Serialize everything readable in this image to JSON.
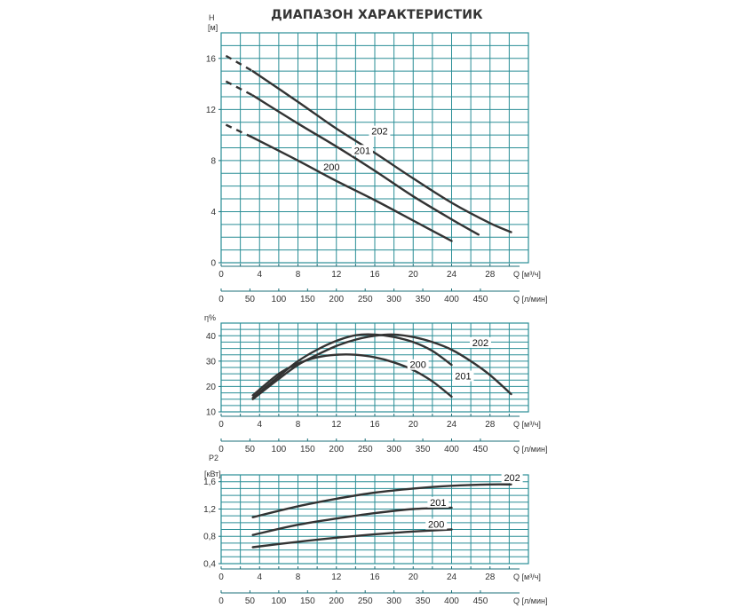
{
  "page": {
    "title": "ДИАПАЗОН ХАРАКТЕРИСТИК"
  },
  "colors": {
    "grid": "#2a8e96",
    "curve": "#333333",
    "axis": "#1b6f78"
  },
  "chart_data": [
    {
      "type": "line",
      "ylabel": "H",
      "yunit": "[м]",
      "ylim": [
        0,
        18
      ],
      "yticks": [
        0,
        4,
        8,
        12,
        16
      ],
      "xlim": [
        0,
        32
      ],
      "xticks": [
        0,
        4,
        8,
        12,
        16,
        20,
        24,
        28
      ],
      "xunit": "Q [м³/ч]",
      "x2ticks": [
        "0",
        "50",
        "100",
        "150",
        "200",
        "250",
        "300",
        "350",
        "400",
        "450"
      ],
      "x2unit": "Q [л/мин]",
      "grid": true,
      "series": [
        {
          "name": "202",
          "x": [
            0.5,
            3.3,
            8,
            12,
            16,
            20,
            24,
            28,
            30.2
          ],
          "y": [
            16.2,
            15.0,
            12.6,
            10.5,
            8.6,
            6.6,
            4.7,
            3.1,
            2.4
          ]
        },
        {
          "name": "201",
          "x": [
            0.5,
            3.3,
            8,
            12,
            16,
            20,
            24,
            26.8
          ],
          "y": [
            14.2,
            13.1,
            10.9,
            9.1,
            7.2,
            5.2,
            3.4,
            2.2
          ]
        },
        {
          "name": "200",
          "x": [
            0.5,
            3.3,
            8,
            12,
            16,
            20,
            24
          ],
          "y": [
            10.8,
            9.8,
            8.0,
            6.4,
            4.9,
            3.3,
            1.7
          ]
        }
      ]
    },
    {
      "type": "line",
      "ylabel": "η%",
      "ylim": [
        10,
        45
      ],
      "yticks": [
        10,
        20,
        30,
        40
      ],
      "xlim": [
        0,
        32
      ],
      "xticks": [
        0,
        4,
        8,
        12,
        16,
        20,
        24,
        28
      ],
      "xunit": "Q [м³/ч]",
      "x2ticks": [
        "0",
        "50",
        "100",
        "150",
        "200",
        "250",
        "300",
        "350",
        "400",
        "450"
      ],
      "x2unit": "Q [л/мин]",
      "grid": true,
      "series": [
        {
          "name": "202",
          "x": [
            3.3,
            6,
            8,
            10,
            12,
            14,
            16,
            18,
            20,
            22,
            24,
            26,
            28,
            30.2
          ],
          "y": [
            15,
            23,
            28.5,
            32.5,
            36,
            38.5,
            40,
            40.5,
            39.5,
            37.5,
            34.5,
            30,
            24.5,
            17
          ]
        },
        {
          "name": "201",
          "x": [
            3.3,
            6,
            8,
            10,
            12,
            14,
            16,
            18,
            20,
            22,
            24
          ],
          "y": [
            15.5,
            24,
            30,
            34.5,
            38,
            40.2,
            40.5,
            39.5,
            37.5,
            34,
            28.5
          ]
        },
        {
          "name": "200",
          "x": [
            3.3,
            6,
            8,
            10,
            12,
            14,
            16,
            18,
            20,
            22,
            24
          ],
          "y": [
            16.5,
            25,
            29,
            31.5,
            32.5,
            32.5,
            31.5,
            29.5,
            26.5,
            22,
            16
          ]
        }
      ]
    },
    {
      "type": "line",
      "ylabel": "P2",
      "yunit": "[кВт]",
      "ylim": [
        0.4,
        1.7
      ],
      "yticks": [
        "0,4",
        "0,8",
        "1,2",
        "1,6"
      ],
      "ytick_values": [
        0.4,
        0.8,
        1.2,
        1.6
      ],
      "xlim": [
        0,
        32
      ],
      "xticks": [
        0,
        4,
        8,
        12,
        16,
        20,
        24,
        28
      ],
      "xunit": "Q [м³/ч]",
      "x2ticks": [
        "0",
        "50",
        "100",
        "150",
        "200",
        "250",
        "300",
        "350",
        "400",
        "450"
      ],
      "x2unit": "Q [л/мин]",
      "grid": true,
      "series": [
        {
          "name": "202",
          "x": [
            3.3,
            8,
            12,
            16,
            20,
            24,
            28,
            30.2
          ],
          "y": [
            1.08,
            1.24,
            1.35,
            1.44,
            1.5,
            1.54,
            1.56,
            1.56
          ]
        },
        {
          "name": "201",
          "x": [
            3.3,
            8,
            12,
            16,
            20,
            24
          ],
          "y": [
            0.82,
            0.97,
            1.06,
            1.14,
            1.2,
            1.22
          ]
        },
        {
          "name": "200",
          "x": [
            3.3,
            8,
            12,
            16,
            20,
            24
          ],
          "y": [
            0.64,
            0.72,
            0.78,
            0.83,
            0.87,
            0.9
          ]
        }
      ]
    }
  ]
}
